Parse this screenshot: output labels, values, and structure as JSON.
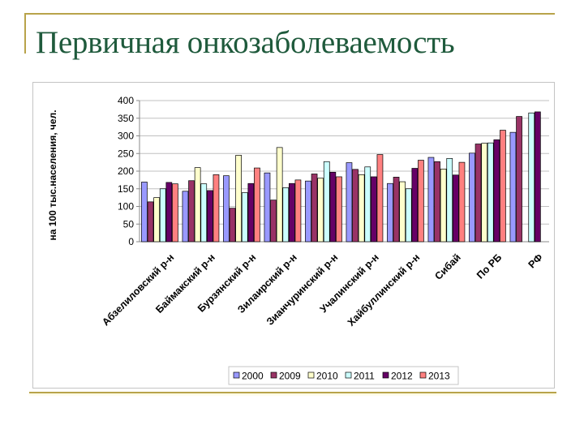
{
  "slide": {
    "title": "Первичная онкозаболеваемость"
  },
  "colors": {
    "frame_line": "#b8a34a",
    "title": "#1f5a3c",
    "gridline": "#c0c0c0"
  },
  "chart_data": {
    "type": "bar",
    "title": "",
    "xlabel": "",
    "ylabel": "на 100 тыс.населения, чел.",
    "ylim": [
      0,
      400
    ],
    "yticks": [
      0,
      50,
      100,
      150,
      200,
      250,
      300,
      350,
      400
    ],
    "grid": true,
    "legend_position": "bottom",
    "categories": [
      "Абзелиловский р-н",
      "Баймакский р-н",
      "Бурзянский р-н",
      "Зилаирский р-н",
      "Зианчуринский р-н",
      "Учалинский  р-н",
      "Хайбуллинский р-н",
      "Сибай",
      "По РБ",
      "РФ"
    ],
    "series": [
      {
        "name": "2000",
        "color": "#9999ff",
        "values": [
          169,
          143,
          187,
          195,
          172,
          224,
          165,
          239,
          251,
          310
        ]
      },
      {
        "name": "2009",
        "color": "#993366",
        "values": [
          113,
          173,
          95,
          118,
          192,
          205,
          183,
          227,
          277,
          355
        ]
      },
      {
        "name": "2010",
        "color": "#ffffcc",
        "values": [
          125,
          210,
          245,
          267,
          180,
          190,
          170,
          206,
          279,
          null
        ]
      },
      {
        "name": "2011",
        "color": "#ccffff",
        "values": [
          150,
          164,
          139,
          153,
          227,
          212,
          150,
          236,
          280,
          365
        ]
      },
      {
        "name": "2012",
        "color": "#660066",
        "values": [
          168,
          145,
          165,
          165,
          197,
          184,
          208,
          189,
          289,
          368
        ]
      },
      {
        "name": "2013",
        "color": "#ff8080",
        "values": [
          164,
          190,
          209,
          175,
          184,
          247,
          231,
          225,
          316,
          null
        ]
      }
    ]
  }
}
